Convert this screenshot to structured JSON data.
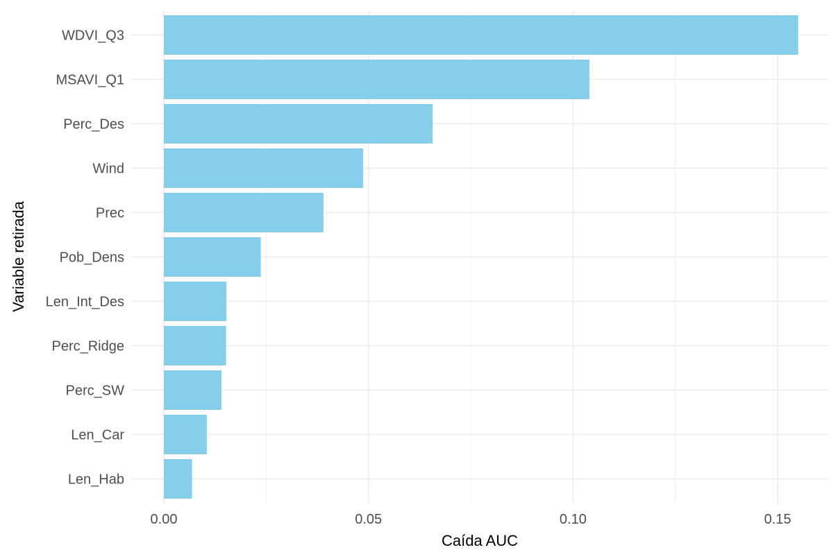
{
  "chart_data": {
    "type": "bar",
    "orientation": "horizontal",
    "categories": [
      "WDVI_Q3",
      "MSAVI_Q1",
      "Perc_Des",
      "Wind",
      "Prec",
      "Pob_Dens",
      "Len_Int_Des",
      "Perc_Ridge",
      "Perc_SW",
      "Len_Car",
      "Len_Hab"
    ],
    "values": [
      0.155,
      0.104,
      0.0657,
      0.0487,
      0.039,
      0.0237,
      0.0153,
      0.0152,
      0.0141,
      0.0105,
      0.0069
    ],
    "xlabel": "Caída AUC",
    "ylabel": "Variable retirada",
    "xlim": [
      -0.008,
      0.163
    ],
    "xticks": [
      0,
      0.05,
      0.1,
      0.15
    ],
    "xtick_labels": [
      "0.00",
      "0.05",
      "0.10",
      "0.15"
    ],
    "bar_color": "#87ceeb",
    "grid": true,
    "legend": "none"
  }
}
